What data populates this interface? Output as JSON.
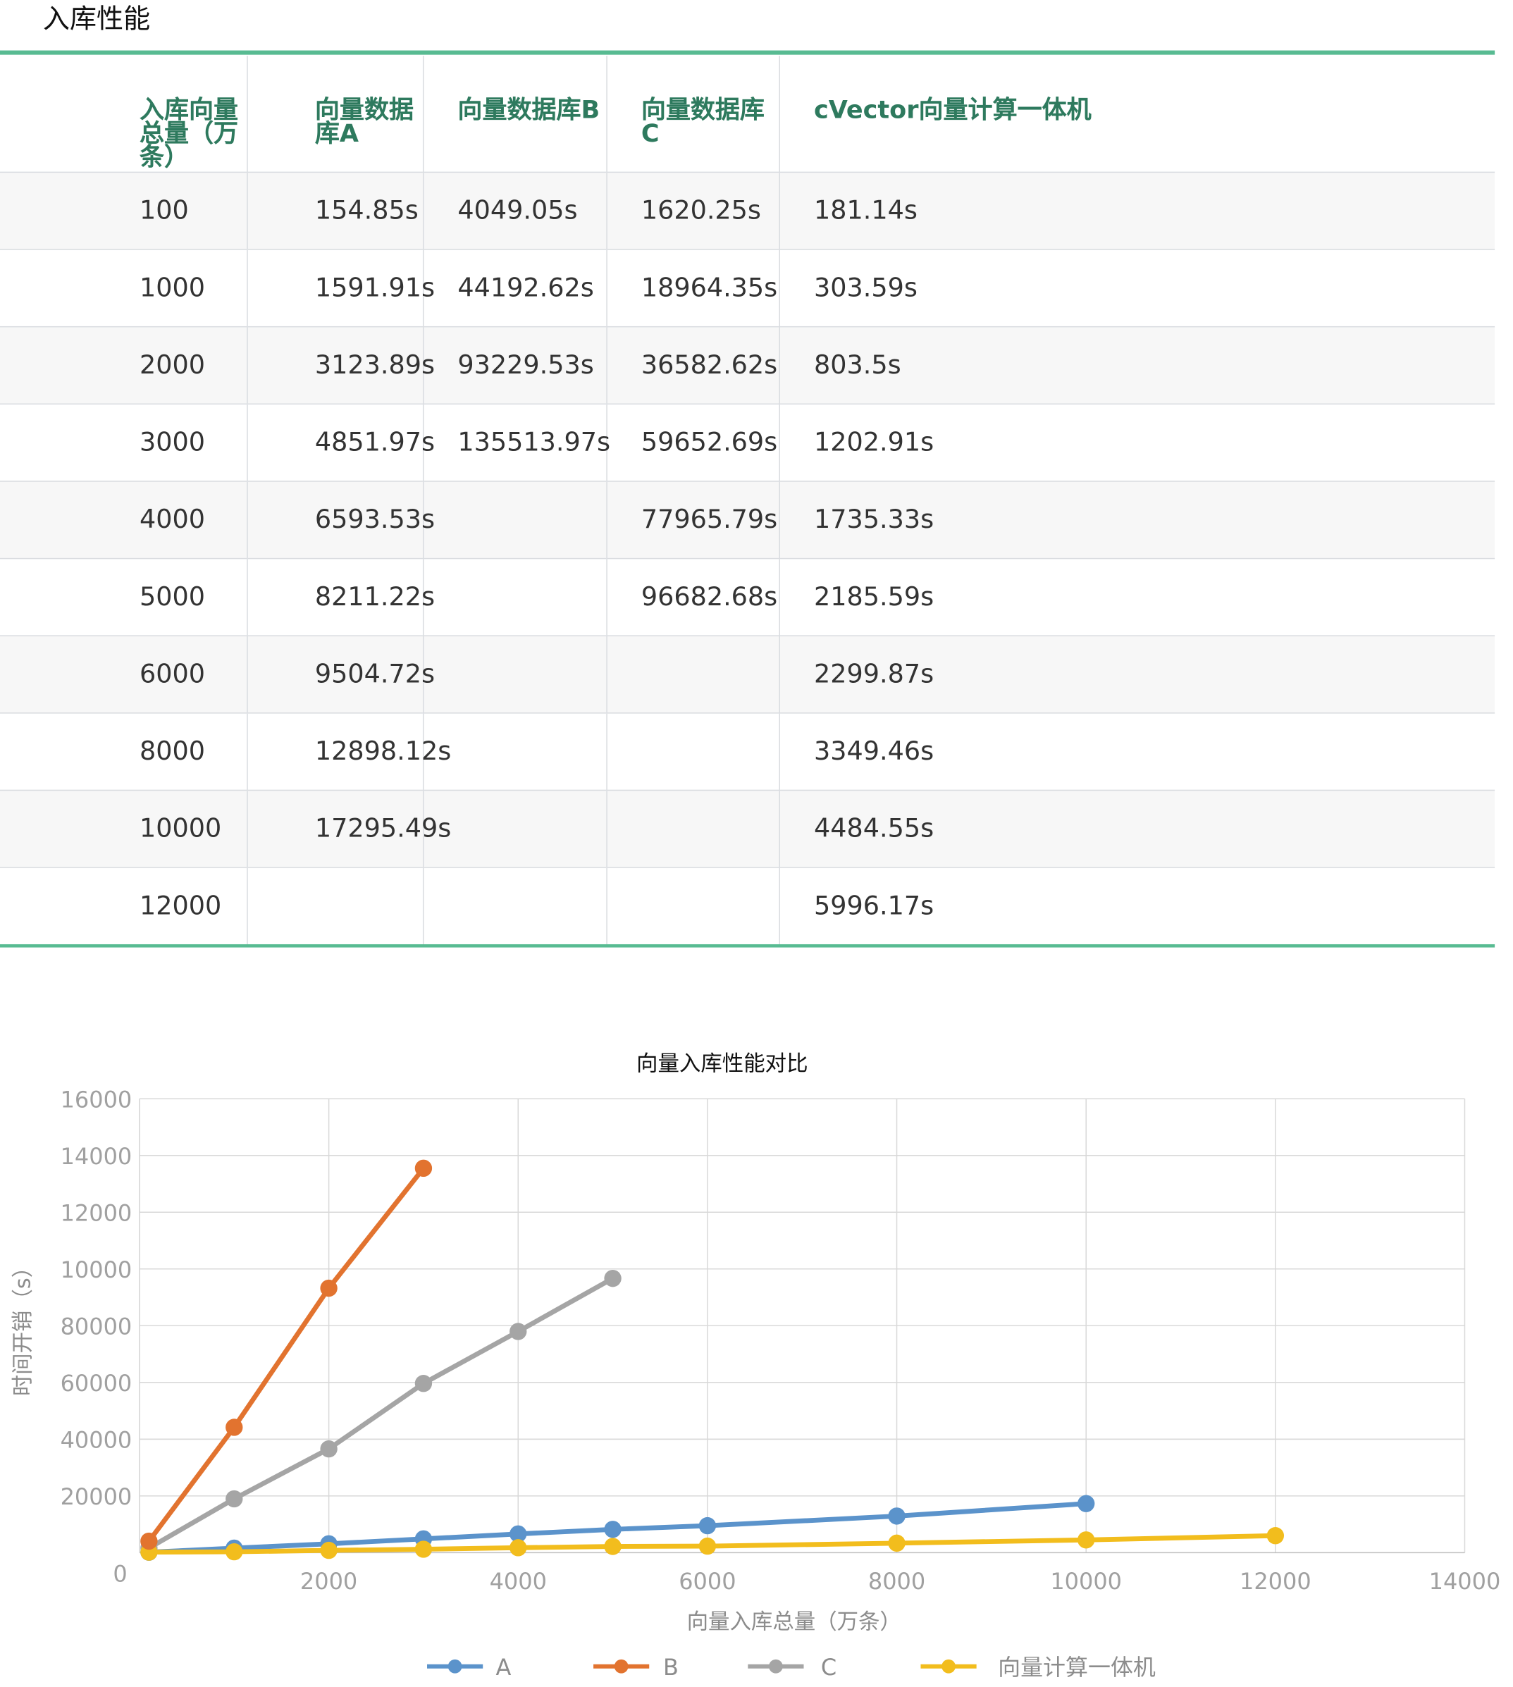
{
  "section_title": "入库性能",
  "table": {
    "headers": [
      "入库向量总量（万条）",
      "向量数据库A",
      "向量数据库B",
      "向量数据库C",
      "cVector向量计算一体机"
    ],
    "rows": [
      [
        "100",
        "154.85s",
        "4049.05s",
        "1620.25s",
        "181.14s"
      ],
      [
        "1000",
        "1591.91s",
        "44192.62s",
        "18964.35s",
        "303.59s"
      ],
      [
        "2000",
        "3123.89s",
        "93229.53s",
        "36582.62s",
        "803.5s"
      ],
      [
        "3000",
        "4851.97s",
        "135513.97s",
        "59652.69s",
        "1202.91s"
      ],
      [
        "4000",
        "6593.53s",
        "",
        "77965.79s",
        "1735.33s"
      ],
      [
        "5000",
        "8211.22s",
        "",
        "96682.68s",
        "2185.59s"
      ],
      [
        "6000",
        "9504.72s",
        "",
        "",
        "2299.87s"
      ],
      [
        "8000",
        "12898.12s",
        "",
        "",
        "3349.46s"
      ],
      [
        "10000",
        "17295.49s",
        "",
        "",
        "4484.55s"
      ],
      [
        "12000",
        "",
        "",
        "",
        "5996.17s"
      ]
    ]
  },
  "chart_data": {
    "type": "line",
    "title": "向量入库性能对比",
    "xlabel": "向量入库总量（万条）",
    "ylabel": "时间开销（s）",
    "xlim": [
      0,
      14000
    ],
    "ylim": [
      0,
      16000
    ],
    "x_ticks": [
      "0",
      "2000",
      "4000",
      "6000",
      "8000",
      "10000",
      "12000",
      "14000"
    ],
    "y_ticks": [
      "20000",
      "40000",
      "60000",
      "80000",
      "10000",
      "12000",
      "14000",
      "16000"
    ],
    "grid": true,
    "legend_position": "bottom",
    "series": [
      {
        "name": "A",
        "color": "#5b93cb",
        "x": [
          100,
          1000,
          2000,
          3000,
          4000,
          5000,
          6000,
          8000,
          10000
        ],
        "y": [
          15.5,
          159.2,
          312.4,
          485.2,
          659.4,
          821.1,
          950.5,
          1289.8,
          1729.5
        ]
      },
      {
        "name": "B",
        "color": "#e2732f",
        "x": [
          100,
          1000,
          2000,
          3000
        ],
        "y": [
          404.9,
          4419.3,
          9323.0,
          13551.4
        ]
      },
      {
        "name": "C",
        "color": "#a5a5a5",
        "x": [
          100,
          1000,
          2000,
          3000,
          4000,
          5000
        ],
        "y": [
          162.0,
          1896.4,
          3658.3,
          5965.3,
          7796.6,
          9668.3
        ]
      },
      {
        "name": "向量计算一体机",
        "color": "#f2bd1d",
        "x": [
          100,
          1000,
          2000,
          3000,
          4000,
          5000,
          6000,
          8000,
          10000,
          12000
        ],
        "y": [
          18.1,
          30.4,
          80.4,
          120.3,
          173.5,
          218.6,
          230.0,
          334.9,
          448.5,
          599.6
        ]
      }
    ]
  }
}
